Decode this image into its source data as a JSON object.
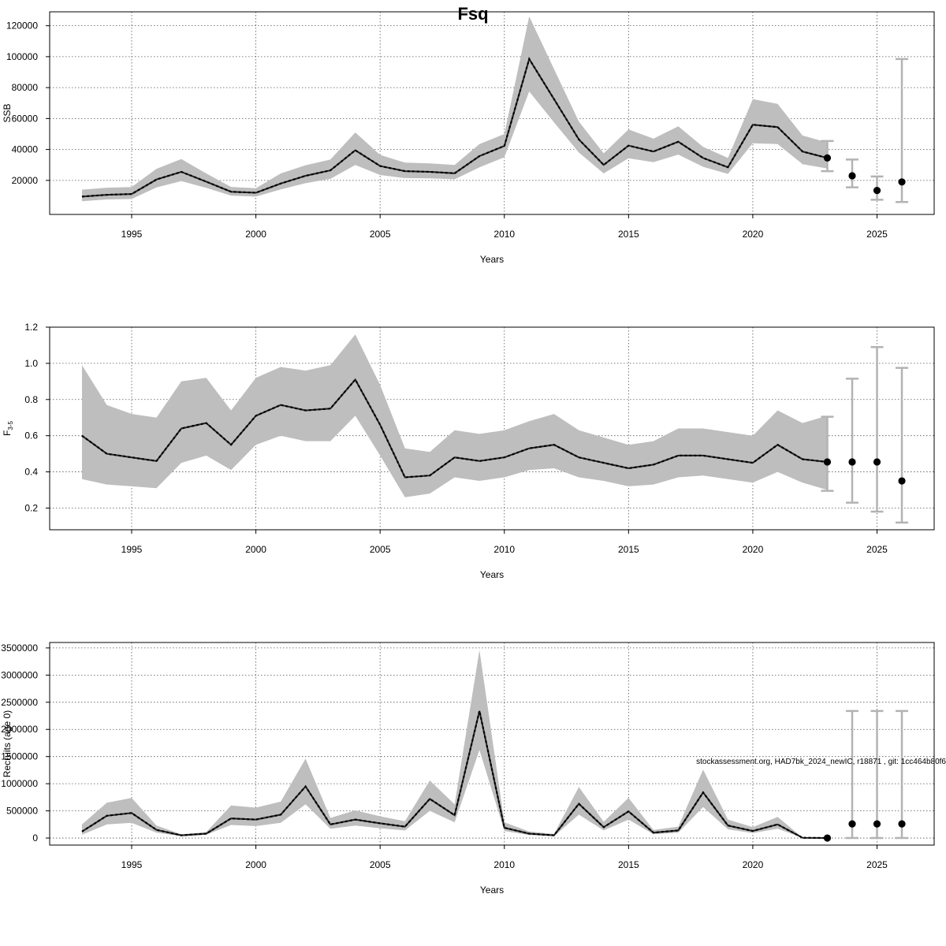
{
  "title": "Fsq",
  "footnote": "stockassessment.org, HAD7bk_2024_newIC, r18871 , git: 1cc464b80f6",
  "colors": {
    "band": "#bebebe",
    "line": "#000000",
    "grid": "#555555",
    "errorbar": "#b3b3b3"
  },
  "chart_data": [
    {
      "type": "line",
      "name": "ssb-panel",
      "ylabel": "SSB",
      "xlabel": "Years",
      "xlim": [
        1991.7,
        2027.3
      ],
      "ylim": [
        -2000,
        129000
      ],
      "xticks": [
        1995,
        2000,
        2005,
        2010,
        2015,
        2020,
        2025
      ],
      "yticks": [
        20000,
        40000,
        60000,
        80000,
        100000,
        120000
      ],
      "ytick_labels": [
        "20000",
        "40000",
        "60000",
        "80000",
        "100000",
        "120000"
      ],
      "grid": true,
      "x": [
        1993,
        1994,
        1995,
        1996,
        1997,
        1998,
        1999,
        2000,
        2001,
        2002,
        2003,
        2004,
        2005,
        2006,
        2007,
        2008,
        2009,
        2010,
        2011,
        2012,
        2013,
        2014,
        2015,
        2016,
        2017,
        2018,
        2019,
        2020,
        2021,
        2022,
        2023
      ],
      "estimate": [
        9500,
        10700,
        11200,
        20600,
        25500,
        19200,
        12700,
        12000,
        18000,
        23000,
        26500,
        39500,
        29300,
        26000,
        25500,
        24600,
        35700,
        42300,
        98500,
        72500,
        46500,
        30000,
        42500,
        38700,
        45000,
        34500,
        28500,
        56000,
        54500,
        38700,
        34500
      ],
      "lower": [
        6500,
        7700,
        8000,
        15500,
        19500,
        15200,
        10200,
        9500,
        14200,
        18200,
        21000,
        30000,
        23500,
        21500,
        21300,
        20700,
        28500,
        35000,
        77500,
        57500,
        38000,
        24500,
        34300,
        31800,
        36700,
        28800,
        24200,
        44000,
        43500,
        30500,
        27700
      ],
      "upper": [
        14000,
        15300,
        15700,
        27500,
        33800,
        24500,
        15800,
        14900,
        24500,
        29800,
        33500,
        51000,
        36500,
        31500,
        31000,
        30000,
        43500,
        50000,
        126000,
        92000,
        58000,
        37500,
        53000,
        47000,
        55000,
        41700,
        34500,
        72500,
        69500,
        49000,
        44500
      ],
      "forecast": [
        {
          "x": 2023,
          "value": 34500,
          "low": 26000,
          "high": 45500
        },
        {
          "x": 2024,
          "value": 23000,
          "low": 15500,
          "high": 33500
        },
        {
          "x": 2025,
          "value": 13500,
          "low": 7500,
          "high": 22500
        },
        {
          "x": 2026,
          "value": 19000,
          "low": 6000,
          "high": 98500
        }
      ]
    },
    {
      "type": "line",
      "name": "fbar-panel",
      "ylabel": "F3-5",
      "ylabel_main": "F",
      "ylabel_sub": "3-5",
      "xlabel": "Years",
      "xlim": [
        1991.7,
        2027.3
      ],
      "ylim": [
        0.08,
        1.2
      ],
      "xticks": [
        1995,
        2000,
        2005,
        2010,
        2015,
        2020,
        2025
      ],
      "yticks": [
        0.2,
        0.4,
        0.6,
        0.8,
        1.0,
        1.2
      ],
      "ytick_labels": [
        "0.2",
        "0.4",
        "0.6",
        "0.8",
        "1.0",
        "1.2"
      ],
      "grid": true,
      "x": [
        1993,
        1994,
        1995,
        1996,
        1997,
        1998,
        1999,
        2000,
        2001,
        2002,
        2003,
        2004,
        2005,
        2006,
        2007,
        2008,
        2009,
        2010,
        2011,
        2012,
        2013,
        2014,
        2015,
        2016,
        2017,
        2018,
        2019,
        2020,
        2021,
        2022,
        2023
      ],
      "estimate": [
        0.6,
        0.5,
        0.48,
        0.46,
        0.64,
        0.67,
        0.55,
        0.71,
        0.77,
        0.74,
        0.75,
        0.91,
        0.66,
        0.37,
        0.38,
        0.48,
        0.46,
        0.48,
        0.53,
        0.55,
        0.48,
        0.45,
        0.42,
        0.44,
        0.49,
        0.49,
        0.47,
        0.45,
        0.55,
        0.47,
        0.455
      ],
      "lower": [
        0.36,
        0.33,
        0.32,
        0.31,
        0.45,
        0.49,
        0.41,
        0.55,
        0.6,
        0.57,
        0.57,
        0.71,
        0.49,
        0.26,
        0.28,
        0.37,
        0.35,
        0.37,
        0.41,
        0.42,
        0.37,
        0.35,
        0.32,
        0.33,
        0.37,
        0.38,
        0.36,
        0.34,
        0.4,
        0.34,
        0.3
      ],
      "upper": [
        0.99,
        0.77,
        0.72,
        0.7,
        0.9,
        0.92,
        0.74,
        0.92,
        0.98,
        0.96,
        0.99,
        1.16,
        0.88,
        0.53,
        0.51,
        0.63,
        0.61,
        0.63,
        0.68,
        0.72,
        0.63,
        0.59,
        0.55,
        0.57,
        0.64,
        0.64,
        0.62,
        0.6,
        0.74,
        0.67,
        0.71
      ],
      "forecast": [
        {
          "x": 2023,
          "value": 0.455,
          "low": 0.295,
          "high": 0.705
        },
        {
          "x": 2024,
          "value": 0.455,
          "low": 0.23,
          "high": 0.915
        },
        {
          "x": 2025,
          "value": 0.455,
          "low": 0.18,
          "high": 1.09
        },
        {
          "x": 2026,
          "value": 0.35,
          "low": 0.12,
          "high": 0.975
        }
      ]
    },
    {
      "type": "line",
      "name": "recruitment-panel",
      "ylabel": "Recruits (age 0)",
      "xlabel": "Years",
      "xlim": [
        1991.7,
        2027.3
      ],
      "ylim": [
        -130000,
        3600000
      ],
      "xticks": [
        1995,
        2000,
        2005,
        2010,
        2015,
        2020,
        2025
      ],
      "yticks": [
        0,
        500000,
        1000000,
        1500000,
        2000000,
        2500000,
        3000000,
        3500000
      ],
      "ytick_labels": [
        "0",
        "500000",
        "1000000",
        "1500000",
        "2000000",
        "2500000",
        "3000000",
        "3500000"
      ],
      "grid": true,
      "x": [
        1993,
        1994,
        1995,
        1996,
        1997,
        1998,
        1999,
        2000,
        2001,
        2002,
        2003,
        2004,
        2005,
        2006,
        2007,
        2008,
        2009,
        2010,
        2011,
        2012,
        2013,
        2014,
        2015,
        2016,
        2017,
        2018,
        2019,
        2020,
        2021,
        2022,
        2023
      ],
      "estimate": [
        120000,
        410000,
        460000,
        150000,
        50000,
        80000,
        360000,
        340000,
        430000,
        950000,
        250000,
        340000,
        270000,
        210000,
        720000,
        420000,
        2340000,
        190000,
        80000,
        50000,
        630000,
        200000,
        490000,
        100000,
        140000,
        840000,
        230000,
        130000,
        250000,
        5000,
        0
      ],
      "lower": [
        60000,
        250000,
        280000,
        100000,
        35000,
        60000,
        240000,
        220000,
        280000,
        620000,
        170000,
        230000,
        180000,
        140000,
        500000,
        290000,
        1620000,
        130000,
        55000,
        35000,
        430000,
        140000,
        340000,
        70000,
        100000,
        570000,
        160000,
        90000,
        170000,
        3000,
        0
      ],
      "upper": [
        250000,
        650000,
        740000,
        230000,
        70000,
        110000,
        600000,
        560000,
        670000,
        1460000,
        370000,
        510000,
        400000,
        310000,
        1060000,
        620000,
        3460000,
        290000,
        120000,
        75000,
        940000,
        300000,
        740000,
        150000,
        210000,
        1260000,
        340000,
        200000,
        390000,
        10000,
        0
      ],
      "forecast": [
        {
          "x": 2023,
          "value": 0,
          "low": 0,
          "high": 0
        },
        {
          "x": 2024,
          "value": 260000,
          "low": 0,
          "high": 2340000
        },
        {
          "x": 2025,
          "value": 260000,
          "low": 0,
          "high": 2340000
        },
        {
          "x": 2026,
          "value": 260000,
          "low": 0,
          "high": 2340000
        }
      ]
    }
  ]
}
